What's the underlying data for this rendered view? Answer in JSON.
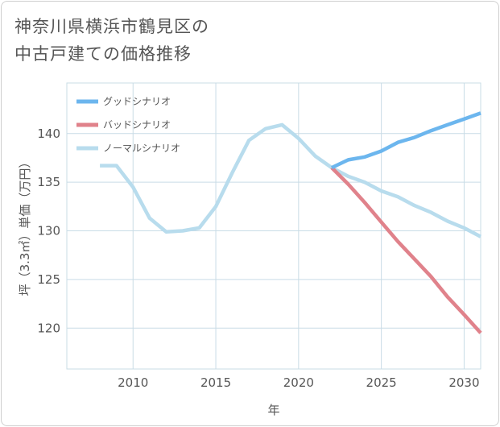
{
  "title_line1": "神奈川県横浜市鶴見区の",
  "title_line2": "中古戸建ての価格推移",
  "chart_data": {
    "type": "line",
    "xlabel": "年",
    "ylabel": "坪（3.3㎡）単価（万円）",
    "xlim": [
      2006,
      2031
    ],
    "ylim": [
      115.8,
      145.2
    ],
    "x_ticks": [
      2010,
      2015,
      2020,
      2025,
      2030
    ],
    "y_ticks": [
      120,
      125,
      130,
      135,
      140
    ],
    "grid": true,
    "legend_position": "top-left",
    "series": [
      {
        "name": "グッドシナリオ",
        "color": "#6cb6ee",
        "x": [
          2022,
          2023,
          2024,
          2025,
          2026,
          2027,
          2028,
          2029,
          2030,
          2031
        ],
        "y": [
          136.5,
          137.3,
          137.6,
          138.2,
          139.1,
          139.6,
          140.3,
          140.9,
          141.5,
          142.1
        ]
      },
      {
        "name": "バッドシナリオ",
        "color": "#e0828b",
        "x": [
          2022,
          2023,
          2024,
          2025,
          2026,
          2027,
          2028,
          2029,
          2030,
          2031
        ],
        "y": [
          136.5,
          134.8,
          132.9,
          130.9,
          128.9,
          127.1,
          125.3,
          123.2,
          121.4,
          119.5
        ]
      },
      {
        "name": "ノーマルシナリオ",
        "color": "#b8dced",
        "x": [
          2008,
          2009,
          2010,
          2011,
          2012,
          2013,
          2014,
          2015,
          2016,
          2017,
          2018,
          2019,
          2020,
          2021,
          2022,
          2023,
          2024,
          2025,
          2026,
          2027,
          2028,
          2029,
          2030,
          2031
        ],
        "y": [
          136.7,
          136.7,
          134.5,
          131.3,
          129.9,
          130.0,
          130.3,
          132.5,
          136.0,
          139.3,
          140.5,
          140.9,
          139.5,
          137.7,
          136.5,
          135.6,
          135.0,
          134.1,
          133.5,
          132.6,
          131.9,
          131.0,
          130.3,
          129.4
        ]
      }
    ]
  }
}
